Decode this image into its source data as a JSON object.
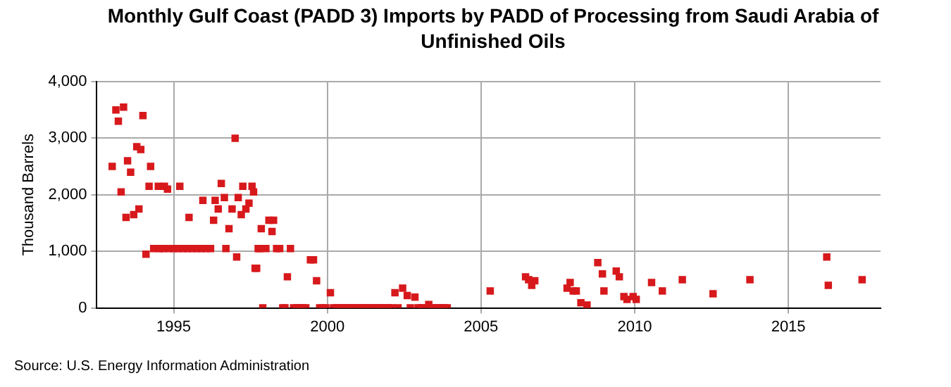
{
  "chart_data": {
    "type": "scatter",
    "title": "Monthly Gulf Coast (PADD 3) Imports by PADD of Processing from Saudi Arabia of Unfinished Oils",
    "ylabel": "Thousand Barrels",
    "annotations": [
      "Source: U.S. Energy Information Administration"
    ],
    "xlim": [
      1992.5,
      2018
    ],
    "xticks": [
      1995,
      2000,
      2005,
      2010,
      2015
    ],
    "ylim": [
      0,
      4000
    ],
    "yticks": [
      {
        "value": 0,
        "label": "0"
      },
      {
        "value": 1000,
        "label": "1,000"
      },
      {
        "value": 2000,
        "label": "2,000"
      },
      {
        "value": 3000,
        "label": "3,000"
      },
      {
        "value": 4000,
        "label": "4,000"
      }
    ],
    "grid": true,
    "marker": "square",
    "legend": false,
    "series": [
      {
        "color": "#d7191c",
        "x": [
          1993.0,
          1993.12,
          1993.2,
          1993.29,
          1993.37,
          1993.45,
          1993.5,
          1993.6,
          1993.7,
          1993.8,
          1993.87,
          1993.93,
          1994.0,
          1994.1,
          1994.2,
          1994.25,
          1994.35,
          1994.5,
          1994.55,
          1994.65,
          1994.7,
          1994.8,
          1994.85,
          1995.0,
          1995.15,
          1995.2,
          1995.3,
          1995.45,
          1995.5,
          1995.6,
          1995.75,
          1995.9,
          1995.95,
          1996.05,
          1996.2,
          1996.3,
          1996.35,
          1996.45,
          1996.55,
          1996.65,
          1996.7,
          1996.8,
          1996.9,
          1997.0,
          1997.05,
          1997.1,
          1997.2,
          1997.25,
          1997.35,
          1997.45,
          1997.55,
          1997.6,
          1997.65,
          1997.7,
          1997.75,
          1997.8,
          1997.85,
          1997.9,
          1998.0,
          1998.1,
          1998.2,
          1998.25,
          1998.35,
          1998.45,
          1998.55,
          1998.62,
          1998.7,
          1998.8,
          1998.9,
          1999.0,
          1999.1,
          1999.2,
          1999.3,
          1999.45,
          1999.55,
          1999.65,
          1999.75,
          1999.85,
          1999.95,
          2000.1,
          2000.2,
          2000.3,
          2000.4,
          2000.5,
          2000.6,
          2000.7,
          2000.8,
          2000.9,
          2001.0,
          2001.1,
          2001.2,
          2001.3,
          2001.4,
          2001.5,
          2001.6,
          2001.7,
          2001.8,
          2001.9,
          2002.0,
          2002.1,
          2002.2,
          2002.3,
          2002.45,
          2002.6,
          2002.7,
          2002.85,
          2002.95,
          2003.05,
          2003.15,
          2003.3,
          2003.4,
          2003.5,
          2003.6,
          2003.7,
          2003.8,
          2003.9,
          2005.3,
          2006.45,
          2006.55,
          2006.65,
          2006.75,
          2007.8,
          2007.9,
          2008.0,
          2008.1,
          2008.25,
          2008.45,
          2008.8,
          2008.95,
          2009.0,
          2009.4,
          2009.5,
          2009.65,
          2009.75,
          2009.95,
          2010.05,
          2010.55,
          2010.9,
          2011.55,
          2012.55,
          2013.75,
          2016.25,
          2016.3,
          2017.4
        ],
        "values": [
          2500,
          3500,
          3300,
          2050,
          3550,
          1600,
          2600,
          2400,
          1650,
          2850,
          1750,
          2800,
          3400,
          950,
          2150,
          2500,
          1050,
          2150,
          1050,
          1050,
          2150,
          2100,
          1050,
          1050,
          1050,
          2150,
          1050,
          1050,
          1600,
          1050,
          1050,
          1050,
          1900,
          1050,
          1050,
          1550,
          1900,
          1750,
          2200,
          1950,
          1050,
          1400,
          1750,
          3000,
          900,
          1950,
          1650,
          2150,
          1750,
          1850,
          2150,
          2050,
          700,
          700,
          1050,
          1050,
          1400,
          0,
          1050,
          1550,
          1350,
          1550,
          1050,
          1050,
          0,
          0,
          550,
          1050,
          0,
          0,
          0,
          0,
          0,
          850,
          850,
          480,
          0,
          0,
          0,
          270,
          0,
          0,
          0,
          0,
          0,
          0,
          0,
          0,
          0,
          0,
          0,
          0,
          0,
          0,
          0,
          0,
          0,
          0,
          0,
          0,
          270,
          0,
          350,
          220,
          0,
          190,
          0,
          0,
          0,
          60,
          0,
          0,
          0,
          0,
          0,
          0,
          300,
          550,
          500,
          400,
          480,
          350,
          450,
          300,
          300,
          90,
          50,
          800,
          600,
          300,
          650,
          550,
          200,
          150,
          200,
          150,
          450,
          300,
          500,
          250,
          500,
          900,
          400,
          500
        ]
      }
    ]
  }
}
